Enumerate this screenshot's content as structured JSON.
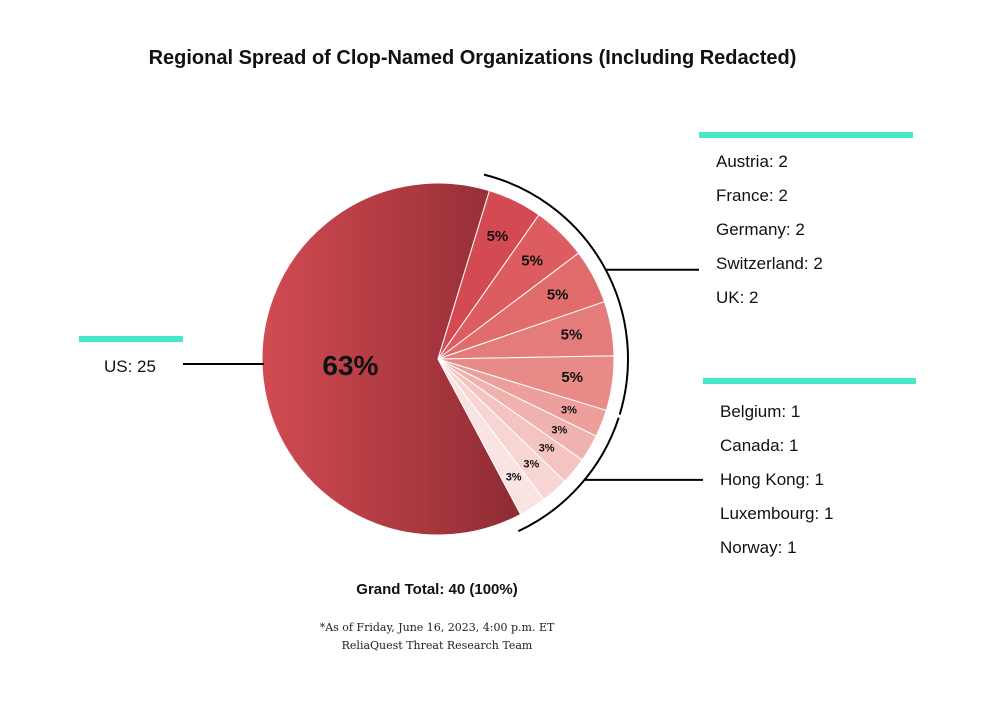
{
  "chart_data": {
    "type": "pie",
    "title": "Regional Spread of Clop-Named Organizations (Including Redacted)",
    "slices": [
      {
        "label": "US",
        "value": 25,
        "percent_label": "63%",
        "color": "#c9434b"
      },
      {
        "label": "Austria",
        "value": 2,
        "percent_label": "5%",
        "color": "#d44a52"
      },
      {
        "label": "France",
        "value": 2,
        "percent_label": "5%",
        "color": "#dc5c5f"
      },
      {
        "label": "Germany",
        "value": 2,
        "percent_label": "5%",
        "color": "#e06c6c"
      },
      {
        "label": "Switzerland",
        "value": 2,
        "percent_label": "5%",
        "color": "#e47c7b"
      },
      {
        "label": "UK",
        "value": 2,
        "percent_label": "5%",
        "color": "#e88b88"
      },
      {
        "label": "Belgium",
        "value": 1,
        "percent_label": "3%",
        "color": "#ec9f9b"
      },
      {
        "label": "Canada",
        "value": 1,
        "percent_label": "3%",
        "color": "#f0b2ae"
      },
      {
        "label": "Hong Kong",
        "value": 1,
        "percent_label": "3%",
        "color": "#f4c4c0"
      },
      {
        "label": "Luxembourg",
        "value": 1,
        "percent_label": "3%",
        "color": "#f7d5d2"
      },
      {
        "label": "Norway",
        "value": 1,
        "percent_label": "3%",
        "color": "#fae4e2"
      }
    ],
    "legend_groups": [
      {
        "items": [
          "US: 25"
        ]
      },
      {
        "items": [
          "Austria: 2",
          "France: 2",
          "Germany: 2",
          "Switzerland: 2",
          "UK: 2"
        ]
      },
      {
        "items": [
          "Belgium: 1",
          "Canada: 1",
          "Hong Kong: 1",
          "Luxembourg: 1",
          "Norway: 1"
        ]
      }
    ],
    "grand_total": "Grand Total: 40 (100%)",
    "footnote": "*As of Friday, June 16, 2023, 4:00 p.m. ET",
    "source": "ReliaQuest Threat Research Team",
    "accent_color": "#48e8c6"
  }
}
